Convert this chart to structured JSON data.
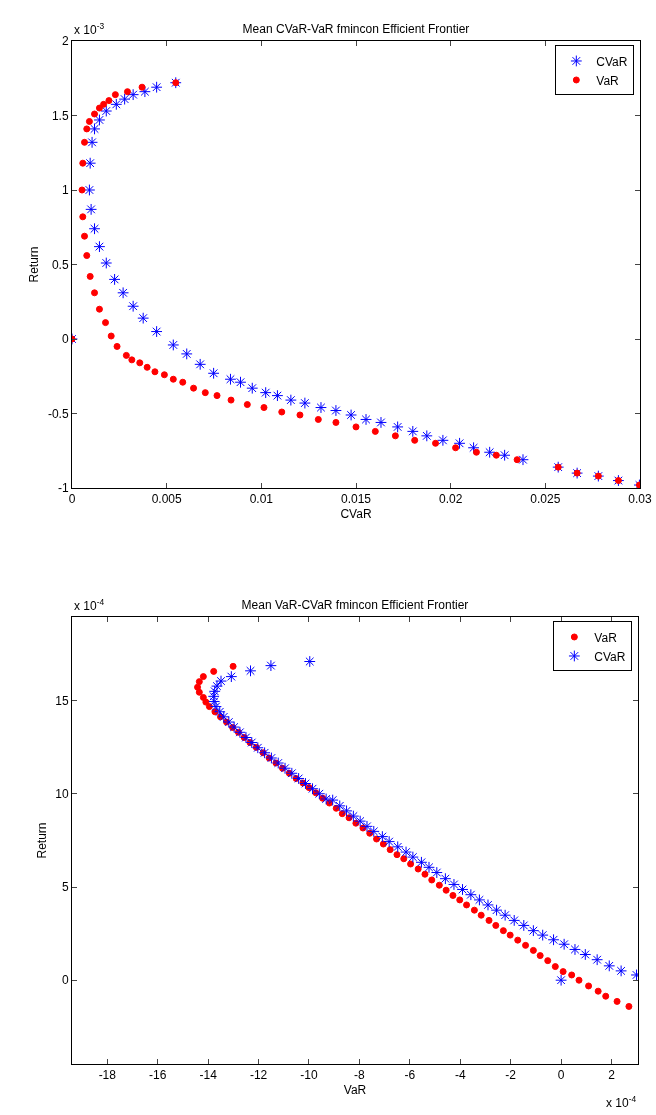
{
  "chart_data": [
    {
      "type": "scatter",
      "title": "Mean CVaR-VaR fmincon Efficient Frontier",
      "xlabel": "CVaR",
      "ylabel": "Return",
      "annotations": [
        "x 10$^{-3}$"
      ],
      "xlim": [
        0,
        0.03
      ],
      "xticks": [
        0,
        0.005,
        0.01,
        0.015,
        0.02,
        0.025,
        0.03
      ],
      "ylim": [
        -1,
        2
      ],
      "yticks": [
        -1,
        -0.5,
        0,
        0.5,
        1,
        1.5,
        2
      ],
      "grid": false,
      "legend": "top right",
      "series": [
        {
          "name": "CVaR",
          "color": "#0000ff",
          "marker": "cross",
          "x": [
            0,
            0.00548,
            0.00447,
            0.00385,
            0.00323,
            0.00278,
            0.00234,
            0.00181,
            0.00145,
            0.00119,
            0.00106,
            0.00096,
            0.00092,
            0.00101,
            0.00119,
            0.00145,
            0.00181,
            0.00225,
            0.0027,
            0.00323,
            0.00376,
            0.00447,
            0.00535,
            0.00606,
            0.00677,
            0.00748,
            0.00837,
            0.0089,
            0.00952,
            0.01023,
            0.01085,
            0.01156,
            0.0123,
            0.01315,
            0.01394,
            0.01474,
            0.01553,
            0.01632,
            0.0172,
            0.018,
            0.01874,
            0.01959,
            0.02047,
            0.02121,
            0.02206,
            0.02285,
            0.02382,
            0.02568,
            0.02668,
            0.0278,
            0.02886,
            0.02997
          ],
          "values": [
            0,
            1.72,
            1.69,
            1.66,
            1.64,
            1.61,
            1.575,
            1.53,
            1.47,
            1.41,
            1.32,
            1.18,
            1.0,
            0.87,
            0.74,
            0.62,
            0.51,
            0.4,
            0.31,
            0.22,
            0.14,
            0.05,
            -0.04,
            -0.1,
            -0.17,
            -0.23,
            -0.27,
            -0.29,
            -0.33,
            -0.36,
            -0.38,
            -0.41,
            -0.43,
            -0.46,
            -0.48,
            -0.51,
            -0.54,
            -0.56,
            -0.59,
            -0.62,
            -0.65,
            -0.68,
            -0.7,
            -0.73,
            -0.76,
            -0.78,
            -0.81,
            -0.86,
            -0.9,
            -0.92,
            -0.95,
            -0.98
          ]
        },
        {
          "name": "VaR",
          "color": "#ff0000",
          "marker": "circle",
          "x": [
            0,
            0.00548,
            0.0037,
            0.00293,
            0.00229,
            0.00195,
            0.00167,
            0.00145,
            0.00119,
            0.00092,
            0.00078,
            0.00066,
            0.00057,
            0.00053,
            0.00057,
            0.00066,
            0.00078,
            0.00096,
            0.00119,
            0.00145,
            0.00177,
            0.00207,
            0.00238,
            0.00287,
            0.00316,
            0.00358,
            0.00397,
            0.00438,
            0.00488,
            0.00535,
            0.00585,
            0.00642,
            0.00704,
            0.00766,
            0.0084,
            0.00926,
            0.01014,
            0.01108,
            0.01204,
            0.01301,
            0.01394,
            0.015,
            0.01602,
            0.01708,
            0.0181,
            0.0192,
            0.02026,
            0.02136,
            0.02241,
            0.02351,
            0.02568,
            0.02668,
            0.0278,
            0.02886,
            0.02997
          ],
          "values": [
            0,
            1.72,
            1.69,
            1.66,
            1.64,
            1.6,
            1.575,
            1.55,
            1.51,
            1.46,
            1.41,
            1.32,
            1.18,
            1.0,
            0.82,
            0.69,
            0.56,
            0.42,
            0.31,
            0.2,
            0.11,
            0.02,
            -0.05,
            -0.11,
            -0.14,
            -0.16,
            -0.19,
            -0.22,
            -0.24,
            -0.27,
            -0.29,
            -0.33,
            -0.36,
            -0.38,
            -0.41,
            -0.44,
            -0.46,
            -0.49,
            -0.51,
            -0.54,
            -0.56,
            -0.59,
            -0.62,
            -0.65,
            -0.68,
            -0.7,
            -0.73,
            -0.76,
            -0.78,
            -0.81,
            -0.86,
            -0.9,
            -0.92,
            -0.95,
            -0.98
          ]
        }
      ]
    },
    {
      "type": "scatter",
      "title": "Mean VaR-CVaR fmincon Efficient Frontier",
      "xlabel": "VaR",
      "ylabel": "Return",
      "annotations": [
        "x 10$^{-4}$",
        "x 10$^{-4}$"
      ],
      "xlim": [
        -19.4,
        3.05
      ],
      "xticks": [
        -18,
        -16,
        -14,
        -12,
        -10,
        -8,
        -6,
        -4,
        -2,
        0,
        2
      ],
      "ylim": [
        -4.5,
        19.5
      ],
      "yticks": [
        0,
        5,
        10,
        15
      ],
      "grid": false,
      "legend": "top right",
      "series": [
        {
          "name": "VaR",
          "color": "#ff0000",
          "marker": "circle",
          "x": [
            -13.01,
            -13.78,
            -14.19,
            -14.35,
            -14.42,
            -14.35,
            -14.19,
            -14.09,
            -13.95,
            -13.73,
            -13.51,
            -13.27,
            -13.03,
            -12.8,
            -12.57,
            -12.34,
            -12.09,
            -11.82,
            -11.58,
            -11.31,
            -11.05,
            -10.78,
            -10.51,
            -10.24,
            -10.0,
            -9.73,
            -9.46,
            -9.19,
            -8.92,
            -8.68,
            -8.41,
            -8.14,
            -7.86,
            -7.59,
            -7.32,
            -7.05,
            -6.78,
            -6.51,
            -6.24,
            -5.97,
            -5.67,
            -5.4,
            -5.13,
            -4.83,
            -4.56,
            -4.29,
            -4.02,
            -3.75,
            -3.44,
            -3.17,
            -2.86,
            -2.59,
            -2.29,
            -2.02,
            -1.72,
            -1.41,
            -1.1,
            -0.83,
            -0.53,
            -0.23,
            0.08,
            0.42,
            0.71,
            1.09,
            1.47,
            1.77,
            2.22,
            2.69
          ],
          "values": [
            16.85,
            16.58,
            16.3,
            16.03,
            15.73,
            15.46,
            15.18,
            14.93,
            14.69,
            14.41,
            14.14,
            13.86,
            13.57,
            13.31,
            13.03,
            12.76,
            12.5,
            12.21,
            11.93,
            11.66,
            11.38,
            11.11,
            10.83,
            10.59,
            10.34,
            10.06,
            9.77,
            9.51,
            9.23,
            8.94,
            8.72,
            8.43,
            8.17,
            7.89,
            7.58,
            7.31,
            7.01,
            6.74,
            6.52,
            6.24,
            5.97,
            5.69,
            5.38,
            5.1,
            4.83,
            4.55,
            4.31,
            4.04,
            3.76,
            3.49,
            3.21,
            2.94,
            2.66,
            2.42,
            2.15,
            1.87,
            1.6,
            1.32,
            1.05,
            0.73,
            0.46,
            0.28,
            0.0,
            -0.31,
            -0.59,
            -0.86,
            -1.14,
            -1.41
          ]
        },
        {
          "name": "CVaR",
          "color": "#0000ff",
          "marker": "cross",
          "x": [
            0,
            -9.97,
            -11.51,
            -12.32,
            -13.08,
            -13.49,
            -13.65,
            -13.74,
            -13.78,
            -13.76,
            -13.69,
            -13.54,
            -13.38,
            -13.18,
            -12.97,
            -12.74,
            -12.5,
            -12.27,
            -12.03,
            -11.76,
            -11.49,
            -11.22,
            -10.95,
            -10.68,
            -10.41,
            -10.14,
            -9.86,
            -9.59,
            -9.32,
            -9.06,
            -8.78,
            -8.51,
            -8.24,
            -7.97,
            -7.7,
            -7.43,
            -7.09,
            -6.82,
            -6.48,
            -6.15,
            -5.88,
            -5.54,
            -5.24,
            -4.93,
            -4.59,
            -4.25,
            -3.91,
            -3.58,
            -3.24,
            -2.9,
            -2.56,
            -2.22,
            -1.86,
            -1.48,
            -1.1,
            -0.73,
            -0.3,
            0.12,
            0.55,
            0.96,
            1.43,
            1.91,
            2.38,
            2.99
          ],
          "values": [
            0,
            17.11,
            16.89,
            16.61,
            16.3,
            16.06,
            15.79,
            15.51,
            15.24,
            14.96,
            14.69,
            14.41,
            14.14,
            13.86,
            13.59,
            13.31,
            13.03,
            12.76,
            12.48,
            12.21,
            11.93,
            11.66,
            11.38,
            11.11,
            10.83,
            10.56,
            10.28,
            10.01,
            9.73,
            9.67,
            9.36,
            9.09,
            8.81,
            8.54,
            8.26,
            7.99,
            7.71,
            7.44,
            7.16,
            6.88,
            6.61,
            6.33,
            6.06,
            5.78,
            5.45,
            5.14,
            4.87,
            4.59,
            4.31,
            4.04,
            3.76,
            3.49,
            3.21,
            2.94,
            2.66,
            2.42,
            2.17,
            1.93,
            1.65,
            1.38,
            1.1,
            0.77,
            0.5,
            0.28
          ]
        }
      ]
    }
  ]
}
